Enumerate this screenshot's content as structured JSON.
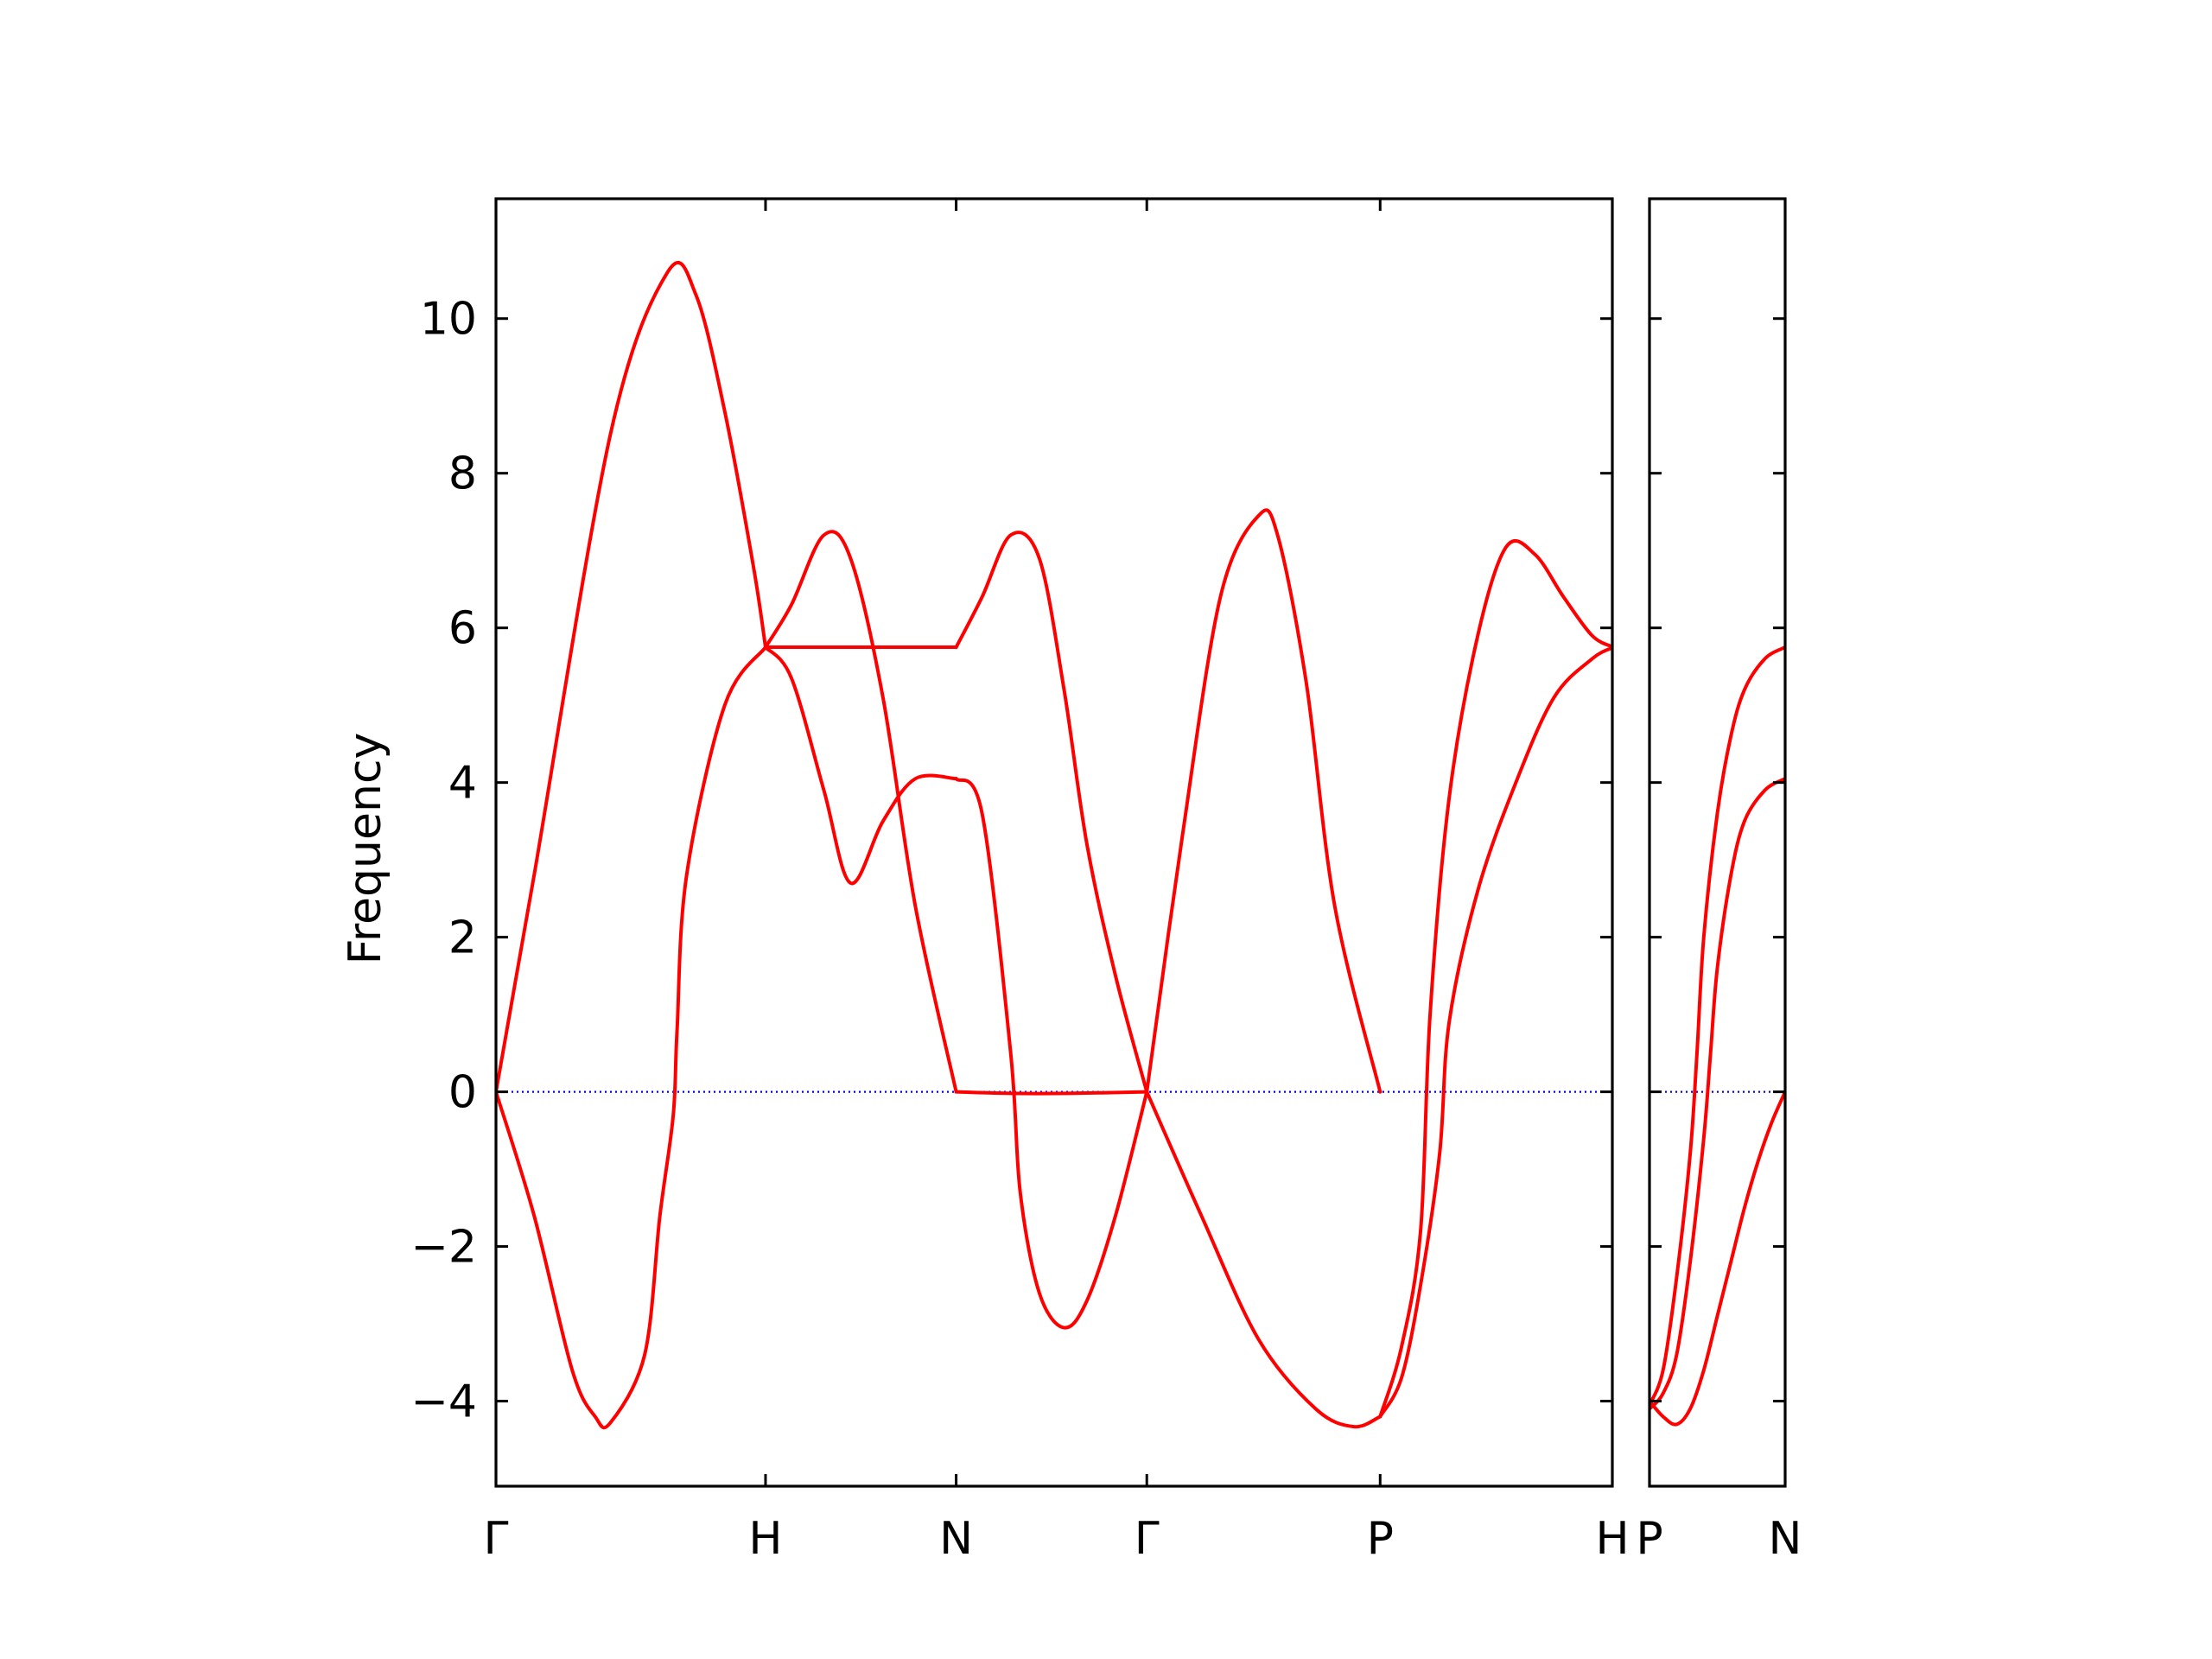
{
  "chart_data": {
    "type": "line",
    "ylabel": "Frequency",
    "xlabel": "",
    "title": "",
    "ylim": [
      -5.1,
      11.55
    ],
    "y_ticks": [
      -4,
      -2,
      0,
      2,
      4,
      6,
      8,
      10
    ],
    "y_tick_labels": [
      "−4",
      "−2",
      "0",
      "2",
      "4",
      "6",
      "8",
      "10"
    ],
    "grid": false,
    "zero_line": {
      "y": 0,
      "color": "#0000ff",
      "style": "dotted"
    },
    "line_color": "#ff0000",
    "panels": [
      {
        "name": "left",
        "x_range": [
          0,
          5.856
        ],
        "x_ticks": [
          0,
          1.414,
          2.414,
          3.414,
          4.638,
          5.862
        ],
        "x_tick_labels": [
          "Γ",
          "H",
          "N",
          "Γ",
          "P",
          "H"
        ],
        "series": [
          {
            "x": [
              0,
              0.2,
              0.6,
              0.9,
              1.05,
              1.2,
              1.35,
              1.414
            ],
            "y": [
              0,
              2.8,
              8.5,
              10.6,
              10.3,
              8.8,
              6.8,
              5.75
            ]
          },
          {
            "x": [
              0,
              0.2,
              0.4,
              0.52,
              0.6,
              0.78,
              0.86,
              0.93,
              0.95,
              1.0,
              1.2,
              1.414
            ],
            "y": [
              0,
              -1.6,
              -3.6,
              -4.2,
              -4.28,
              -3.4,
              -1.6,
              -0.3,
              0.8,
              2.8,
              5.0,
              5.75
            ]
          },
          {
            "x": [
              1.414,
              1.55,
              1.72,
              1.86,
              2.03,
              2.2,
              2.414
            ],
            "y": [
              5.75,
              6.3,
              7.2,
              6.9,
              5.1,
              2.4,
              0
            ]
          },
          {
            "x": [
              1.414,
              1.55,
              1.72,
              1.86,
              2.03,
              2.2,
              2.414
            ],
            "y": [
              5.75,
              5.35,
              3.9,
              2.7,
              3.5,
              4.05,
              4.05
            ]
          },
          {
            "x": [
              1.414,
              1.8,
              2.1,
              2.414
            ],
            "y": [
              5.75,
              5.75,
              5.75,
              5.75
            ]
          },
          {
            "x": [
              2.414,
              2.55,
              2.7,
              2.85,
              2.98,
              3.1,
              3.25,
              3.414
            ],
            "y": [
              5.75,
              6.4,
              7.2,
              6.9,
              5.2,
              3.2,
              1.5,
              0
            ]
          },
          {
            "x": [
              2.414,
              2.55,
              2.7,
              2.75,
              2.85,
              2.98,
              3.1,
              3.25,
              3.414
            ],
            "y": [
              4.05,
              3.6,
              0.5,
              -1.3,
              -2.6,
              -3.05,
              -2.7,
              -1.6,
              0
            ]
          },
          {
            "x": [
              2.414,
              2.7,
              3.0,
              3.414
            ],
            "y": [
              0,
              -0.02,
              -0.02,
              0
            ]
          },
          {
            "x": [
              3.414,
              3.6,
              3.8,
              4.0,
              4.1,
              4.25,
              4.4,
              4.638
            ],
            "y": [
              0,
              3.3,
              6.4,
              7.45,
              7.2,
              5.3,
              2.4,
              0
            ]
          },
          {
            "x": [
              3.414,
              3.7,
              4.0,
              4.3,
              4.5,
              4.638
            ],
            "y": [
              0,
              -1.6,
              -3.2,
              -4.1,
              -4.33,
              -4.2
            ]
          },
          {
            "x": [
              4.638,
              4.75,
              4.85,
              4.9,
              5.0,
              5.15,
              5.3,
              5.45,
              5.6,
              5.75,
              5.862
            ],
            "y": [
              -4.2,
              -3.3,
              -1.8,
              1.0,
              3.8,
              5.9,
              7.05,
              6.95,
              6.4,
              5.9,
              5.75
            ]
          },
          {
            "x": [
              4.638,
              4.75,
              4.85,
              4.95,
              5.0,
              5.15,
              5.35,
              5.55,
              5.75,
              5.862
            ],
            "y": [
              -4.2,
              -3.7,
              -2.5,
              -0.8,
              0.9,
              2.6,
              4.0,
              5.1,
              5.6,
              5.75
            ]
          }
        ]
      },
      {
        "name": "right",
        "x_range": [
          0,
          1.0
        ],
        "x_ticks": [
          0,
          1.0
        ],
        "x_tick_labels": [
          "P",
          "N"
        ],
        "series": [
          {
            "x": [
              0,
              0.1,
              0.2,
              0.3,
              0.4,
              0.5,
              0.6,
              0.7,
              0.8,
              0.9,
              1.0
            ],
            "y": [
              -4.0,
              -4.2,
              -4.3,
              -4.1,
              -3.6,
              -2.9,
              -2.2,
              -1.5,
              -0.9,
              -0.4,
              0
            ]
          },
          {
            "x": [
              0,
              0.1,
              0.2,
              0.3,
              0.35,
              0.4,
              0.5,
              0.6,
              0.7,
              0.85,
              1.0
            ],
            "y": [
              -4.05,
              -3.6,
              -2.4,
              -0.8,
              0.5,
              2.0,
              3.6,
              4.6,
              5.2,
              5.6,
              5.75
            ]
          },
          {
            "x": [
              0,
              0.1,
              0.2,
              0.3,
              0.4,
              0.45,
              0.5,
              0.6,
              0.7,
              0.85,
              1.0
            ],
            "y": [
              -4.1,
              -3.9,
              -3.4,
              -2.2,
              -0.6,
              0.5,
              1.6,
              2.8,
              3.5,
              3.9,
              4.05
            ]
          }
        ]
      }
    ]
  }
}
